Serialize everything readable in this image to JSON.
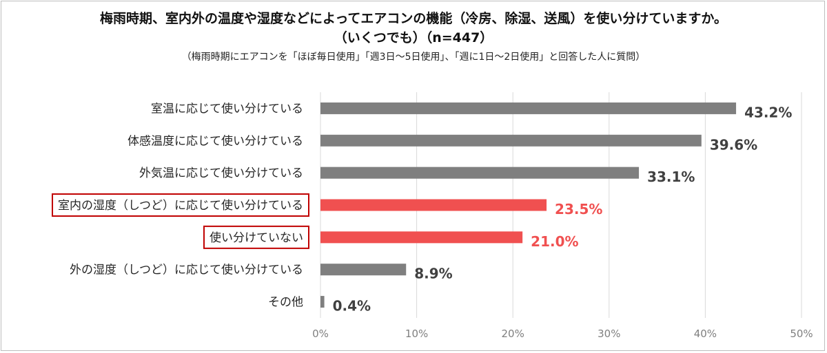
{
  "chart_data": {
    "type": "bar",
    "orientation": "horizontal",
    "title": "梅雨時期、室内外の温度や湿度などによってエアコンの機能（冷房、除湿、送風）を使い分けていますか。",
    "title_line2": "（いくつでも）（n=447）",
    "subtitle": "（梅雨時期にエアコンを「ほぼ毎日使用」「週3日～5日使用」、「週に1日～2日使用」と回答した人に質問）",
    "categories": [
      "室温に応じて使い分けている",
      "体感温度に応じて使い分けている",
      "外気温に応じて使い分けている",
      "室内の湿度（しつど）に応じて使い分けている",
      "使い分けていない",
      "外の湿度（しつど）に応じて使い分けている",
      "その他"
    ],
    "values": [
      43.2,
      39.6,
      33.1,
      23.5,
      21.0,
      8.9,
      0.4
    ],
    "value_labels": [
      "43.2%",
      "39.6%",
      "33.1%",
      "23.5%",
      "21.0%",
      "8.9%",
      "0.4%"
    ],
    "highlighted": [
      false,
      false,
      false,
      true,
      true,
      false,
      false
    ],
    "xlim": [
      0,
      50
    ],
    "xticks": [
      "0%",
      "10%",
      "20%",
      "30%",
      "40%",
      "50%"
    ],
    "xtick_values": [
      0,
      10,
      20,
      30,
      40,
      50
    ],
    "grid": true,
    "colors": {
      "bar": "#7f7f7f",
      "highlight": "#f05050",
      "highlight_box": "#c00000",
      "label": "#404040",
      "grid": "#d9d9d9"
    }
  }
}
